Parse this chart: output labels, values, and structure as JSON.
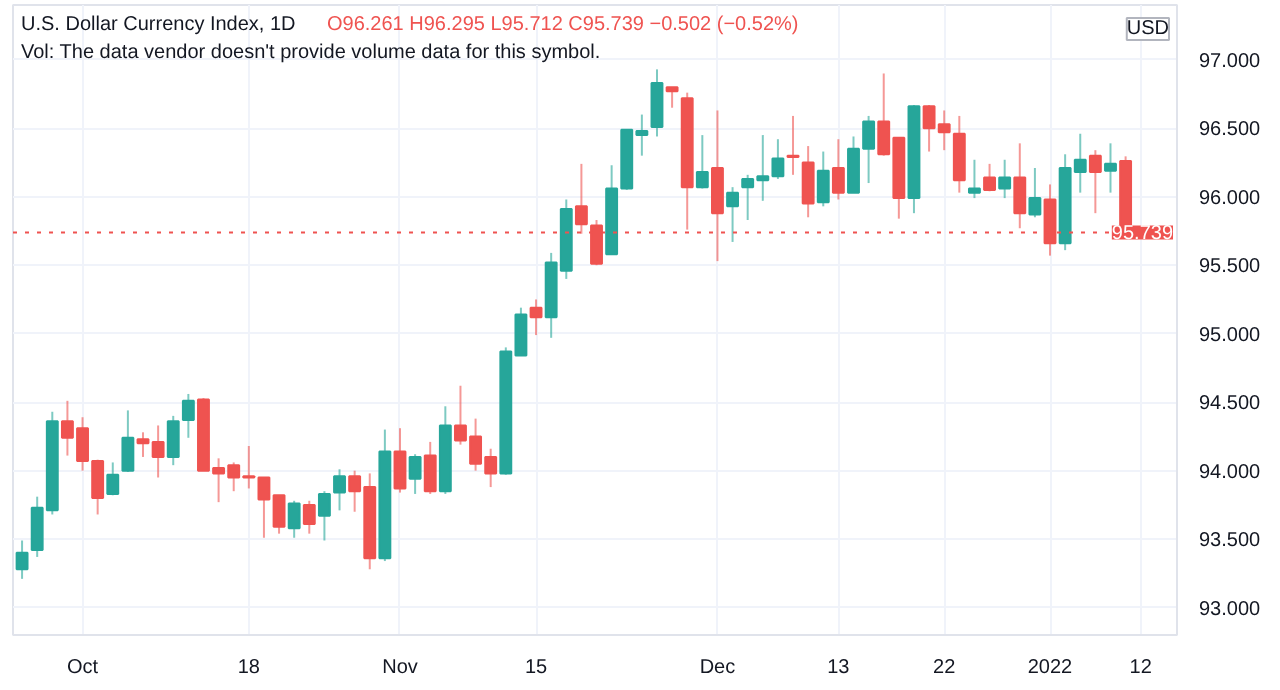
{
  "chart_data": {
    "type": "candlestick",
    "title": "U.S. Dollar Currency Index, 1D",
    "subtitle": "O96.261 H96.295 L95.712 C95.739 −0.502 (−0.52%)",
    "annotations": [
      "Vol: The data vendor doesn't provide volume data for this symbol.",
      "USD"
    ],
    "categories": [
      null,
      null,
      null,
      null,
      "Oct",
      null,
      null,
      null,
      null,
      null,
      null,
      null,
      null,
      null,
      null,
      "18",
      null,
      null,
      null,
      null,
      null,
      null,
      null,
      null,
      null,
      "Nov",
      null,
      null,
      null,
      null,
      null,
      null,
      null,
      null,
      "15",
      null,
      null,
      null,
      null,
      null,
      null,
      null,
      null,
      null,
      null,
      null,
      "Dec",
      null,
      null,
      null,
      null,
      null,
      null,
      null,
      "13",
      null,
      null,
      null,
      null,
      null,
      null,
      "22",
      null,
      null,
      null,
      null,
      null,
      null,
      "2022",
      null,
      null,
      null,
      null,
      null,
      "12",
      null,
      null
    ],
    "ohlc": [
      [
        93.28,
        93.49,
        93.21,
        93.4
      ],
      [
        93.42,
        93.81,
        93.37,
        93.73
      ],
      [
        93.71,
        94.43,
        93.68,
        94.36
      ],
      [
        94.36,
        94.51,
        94.11,
        94.24
      ],
      [
        94.31,
        94.39,
        94.0,
        94.07
      ],
      [
        94.07,
        94.08,
        93.68,
        93.8
      ],
      [
        93.83,
        94.06,
        93.82,
        93.97
      ],
      [
        94.0,
        94.44,
        93.99,
        94.24
      ],
      [
        94.23,
        94.28,
        94.1,
        94.2
      ],
      [
        94.21,
        94.33,
        93.95,
        94.1
      ],
      [
        94.1,
        94.4,
        94.04,
        94.36
      ],
      [
        94.37,
        94.56,
        94.24,
        94.51
      ],
      [
        94.52,
        94.53,
        94.0,
        94.0
      ],
      [
        94.02,
        94.09,
        93.77,
        93.98
      ],
      [
        94.04,
        94.06,
        93.85,
        93.95
      ],
      [
        93.96,
        94.18,
        93.87,
        93.95
      ],
      [
        93.95,
        93.95,
        93.51,
        93.79
      ],
      [
        93.82,
        93.82,
        93.54,
        93.59
      ],
      [
        93.58,
        93.78,
        93.51,
        93.76
      ],
      [
        93.75,
        93.78,
        93.54,
        93.61
      ],
      [
        93.67,
        93.85,
        93.49,
        93.83
      ],
      [
        93.84,
        94.01,
        93.71,
        93.96
      ],
      [
        93.96,
        94.0,
        93.7,
        93.85
      ],
      [
        93.88,
        93.98,
        93.28,
        93.36
      ],
      [
        93.36,
        94.3,
        93.34,
        94.14
      ],
      [
        94.14,
        94.31,
        93.84,
        93.87
      ],
      [
        93.94,
        94.12,
        93.83,
        94.1
      ],
      [
        94.11,
        94.21,
        93.83,
        93.85
      ],
      [
        93.85,
        94.47,
        93.83,
        94.33
      ],
      [
        94.33,
        94.62,
        94.19,
        94.22
      ],
      [
        94.25,
        94.38,
        94.0,
        94.05
      ],
      [
        94.1,
        94.16,
        93.88,
        93.98
      ],
      [
        93.98,
        94.9,
        93.97,
        94.87
      ],
      [
        94.84,
        95.19,
        94.84,
        95.14
      ],
      [
        95.19,
        95.25,
        94.99,
        95.12
      ],
      [
        95.12,
        95.59,
        94.97,
        95.52
      ],
      [
        95.46,
        95.98,
        95.4,
        95.91
      ],
      [
        95.93,
        96.24,
        95.73,
        95.8
      ],
      [
        95.79,
        95.83,
        95.5,
        95.51
      ],
      [
        95.58,
        96.23,
        95.58,
        96.06
      ],
      [
        96.06,
        96.49,
        96.05,
        96.49
      ],
      [
        96.45,
        96.6,
        96.3,
        96.48
      ],
      [
        96.51,
        96.93,
        96.44,
        96.83
      ],
      [
        96.8,
        96.8,
        96.65,
        96.77
      ],
      [
        96.72,
        96.76,
        95.76,
        96.07
      ],
      [
        96.07,
        96.45,
        96.06,
        96.18
      ],
      [
        96.21,
        96.63,
        95.53,
        95.88
      ],
      [
        95.93,
        96.07,
        95.67,
        96.03
      ],
      [
        96.07,
        96.16,
        95.83,
        96.13
      ],
      [
        96.12,
        96.45,
        95.97,
        96.15
      ],
      [
        96.15,
        96.42,
        96.13,
        96.28
      ],
      [
        96.3,
        96.59,
        96.16,
        96.29
      ],
      [
        96.25,
        96.37,
        95.85,
        95.95
      ],
      [
        95.96,
        96.33,
        95.93,
        96.19
      ],
      [
        96.21,
        96.42,
        95.98,
        96.03
      ],
      [
        96.03,
        96.44,
        96.03,
        96.35
      ],
      [
        96.35,
        96.59,
        96.1,
        96.55
      ],
      [
        96.55,
        96.9,
        96.3,
        96.31
      ],
      [
        96.43,
        96.43,
        95.84,
        95.99
      ],
      [
        95.99,
        96.67,
        95.88,
        96.66
      ],
      [
        96.66,
        96.67,
        96.33,
        96.5
      ],
      [
        96.53,
        96.63,
        96.34,
        96.47
      ],
      [
        96.46,
        96.59,
        96.03,
        96.12
      ],
      [
        96.03,
        96.27,
        95.99,
        96.06
      ],
      [
        96.14,
        96.24,
        96.04,
        96.05
      ],
      [
        96.06,
        96.27,
        95.99,
        96.14
      ],
      [
        96.14,
        96.39,
        95.77,
        95.88
      ],
      [
        95.87,
        96.21,
        95.85,
        95.99
      ],
      [
        95.98,
        96.09,
        95.57,
        95.66
      ],
      [
        95.66,
        96.31,
        95.61,
        96.21
      ],
      [
        96.18,
        96.46,
        96.03,
        96.27
      ],
      [
        96.3,
        96.34,
        95.88,
        96.18
      ],
      [
        96.19,
        96.39,
        96.03,
        96.24
      ],
      [
        96.261,
        96.295,
        95.712,
        95.739
      ],
      null,
      null,
      null
    ],
    "colors": [
      "#26a69a",
      "#26a69a",
      "#26a69a",
      "#ef5350",
      "#ef5350",
      "#ef5350",
      "#26a69a",
      "#26a69a",
      "#ef5350",
      "#ef5350",
      "#26a69a",
      "#26a69a",
      "#ef5350",
      "#ef5350",
      "#ef5350",
      "#ef5350",
      "#ef5350",
      "#ef5350",
      "#26a69a",
      "#ef5350",
      "#26a69a",
      "#26a69a",
      "#ef5350",
      "#ef5350",
      "#26a69a",
      "#ef5350",
      "#26a69a",
      "#ef5350",
      "#26a69a",
      "#ef5350",
      "#ef5350",
      "#ef5350",
      "#26a69a",
      "#26a69a",
      "#ef5350",
      "#26a69a",
      "#26a69a",
      "#ef5350",
      "#ef5350",
      "#26a69a",
      "#26a69a",
      "#26a69a",
      "#26a69a",
      "#ef5350",
      "#ef5350",
      "#26a69a",
      "#ef5350",
      "#26a69a",
      "#26a69a",
      "#26a69a",
      "#26a69a",
      "#ef5350",
      "#ef5350",
      "#26a69a",
      "#ef5350",
      "#26a69a",
      "#26a69a",
      "#ef5350",
      "#ef5350",
      "#26a69a",
      "#ef5350",
      "#ef5350",
      "#ef5350",
      "#26a69a",
      "#ef5350",
      "#26a69a",
      "#ef5350",
      "#26a69a",
      "#ef5350",
      "#26a69a",
      "#26a69a",
      "#ef5350",
      "#26a69a",
      "#ef5350",
      null,
      null,
      null
    ],
    "ylim": [
      92.8,
      97.4
    ],
    "yticks": [
      {
        "value": 93,
        "label": "93.000"
      },
      {
        "value": 93.5,
        "label": "93.500"
      },
      {
        "value": 94,
        "label": "94.000"
      },
      {
        "value": 94.5,
        "label": "94.500"
      },
      {
        "value": 95,
        "label": "95.000"
      },
      {
        "value": 95.5,
        "label": "95.500"
      },
      {
        "value": 96,
        "label": "96.000"
      },
      {
        "value": 96.5,
        "label": "96.500"
      },
      {
        "value": 97,
        "label": "97.000"
      }
    ],
    "ref_lines": [
      {
        "axis": "y",
        "value": 95.739,
        "label": "95.739",
        "color": "#ef5350",
        "line_style": "dotted"
      }
    ],
    "grid": true
  }
}
